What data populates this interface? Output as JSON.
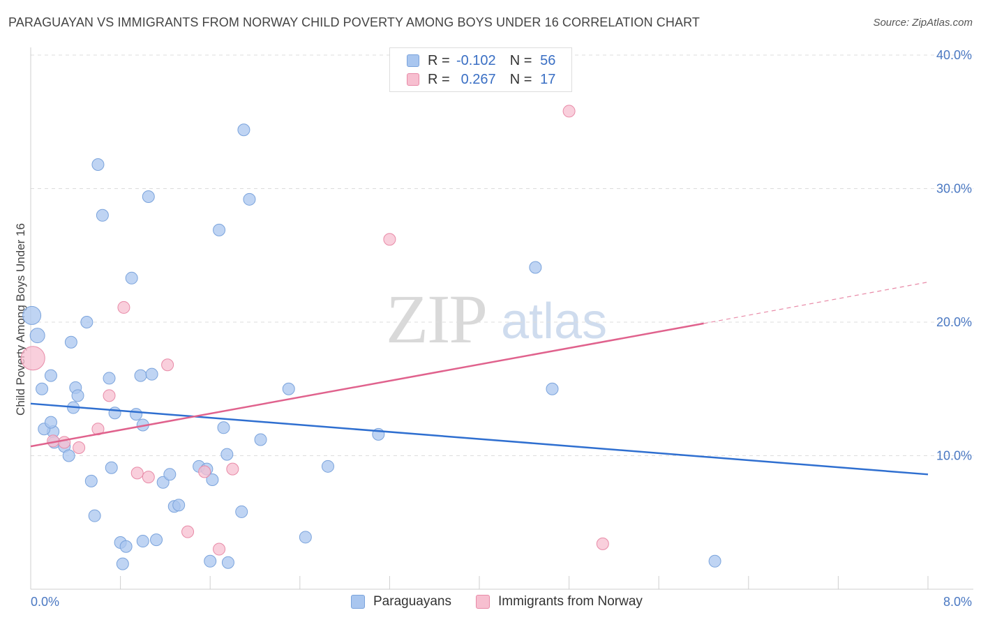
{
  "header": {
    "title": "PARAGUAYAN VS IMMIGRANTS FROM NORWAY CHILD POVERTY AMONG BOYS UNDER 16 CORRELATION CHART",
    "source": "Source: ZipAtlas.com"
  },
  "watermark": {
    "zip": "ZIP",
    "atlas": "atlas"
  },
  "legend": {
    "rows": [
      {
        "r_label": "R =",
        "r_value": "-0.102",
        "n_label": "N =",
        "n_value": "56",
        "color": "#a9c6ef",
        "border": "#7aa3dc"
      },
      {
        "r_label": "R =",
        "r_value": "0.267",
        "n_label": "N =",
        "n_value": "17",
        "color": "#f7bfd0",
        "border": "#e88aa7"
      }
    ]
  },
  "bottom_legend": [
    {
      "label": "Paraguayans",
      "color": "#a9c6ef",
      "border": "#7aa3dc"
    },
    {
      "label": "Immigrants from Norway",
      "color": "#f7bfd0",
      "border": "#e88aa7"
    }
  ],
  "chart_data": {
    "type": "scatter",
    "title": "PARAGUAYAN VS IMMIGRANTS FROM NORWAY CHILD POVERTY AMONG BOYS UNDER 16 CORRELATION CHART",
    "xlabel": "",
    "ylabel": "Child Poverty Among Boys Under 16",
    "xlim": [
      0,
      8
    ],
    "ylim": [
      0,
      40
    ],
    "x_tick_labels": [
      "0.0%",
      "8.0%"
    ],
    "y_ticks": [
      10,
      20,
      30,
      40
    ],
    "y_tick_labels": [
      "10.0%",
      "20.0%",
      "30.0%",
      "40.0%"
    ],
    "grid": true,
    "legend_position": "top-center",
    "series": [
      {
        "name": "Paraguayans",
        "color": "#a9c6ef",
        "stroke": "#7aa3dc",
        "points": [
          [
            0.01,
            20.5
          ],
          [
            0.06,
            19.0
          ],
          [
            0.2,
            11.8
          ],
          [
            0.21,
            11.0
          ],
          [
            0.1,
            15.0
          ],
          [
            0.12,
            12.0
          ],
          [
            0.18,
            12.5
          ],
          [
            0.3,
            10.7
          ],
          [
            0.34,
            10.0
          ],
          [
            0.38,
            13.6
          ],
          [
            0.4,
            15.1
          ],
          [
            0.42,
            14.5
          ],
          [
            0.36,
            18.5
          ],
          [
            0.5,
            20.0
          ],
          [
            0.6,
            31.8
          ],
          [
            0.64,
            28.0
          ],
          [
            0.7,
            15.8
          ],
          [
            0.75,
            13.2
          ],
          [
            0.72,
            9.1
          ],
          [
            0.54,
            8.1
          ],
          [
            0.57,
            5.5
          ],
          [
            0.8,
            3.5
          ],
          [
            0.85,
            3.2
          ],
          [
            0.82,
            1.9
          ],
          [
            0.9,
            23.3
          ],
          [
            0.94,
            13.1
          ],
          [
            0.98,
            16.0
          ],
          [
            1.0,
            12.3
          ],
          [
            1.05,
            29.4
          ],
          [
            1.08,
            16.1
          ],
          [
            1.12,
            3.7
          ],
          [
            1.18,
            8.0
          ],
          [
            1.24,
            8.6
          ],
          [
            1.28,
            6.2
          ],
          [
            1.32,
            6.3
          ],
          [
            1.5,
            9.2
          ],
          [
            1.57,
            9.0
          ],
          [
            1.6,
            2.1
          ],
          [
            1.62,
            8.2
          ],
          [
            1.72,
            12.1
          ],
          [
            1.68,
            26.9
          ],
          [
            1.75,
            10.1
          ],
          [
            1.76,
            2.0
          ],
          [
            1.88,
            5.8
          ],
          [
            1.9,
            34.4
          ],
          [
            1.95,
            29.2
          ],
          [
            2.05,
            11.2
          ],
          [
            2.3,
            15.0
          ],
          [
            2.45,
            3.9
          ],
          [
            2.65,
            9.2
          ],
          [
            3.1,
            11.6
          ],
          [
            4.5,
            24.1
          ],
          [
            4.65,
            15.0
          ],
          [
            6.1,
            2.1
          ],
          [
            0.18,
            16.0
          ],
          [
            1.0,
            3.6
          ]
        ],
        "trend": {
          "x1": 0,
          "y1": 13.9,
          "x2": 8,
          "y2": 8.6
        }
      },
      {
        "name": "Immigrants from Norway",
        "color": "#f7bfd0",
        "stroke": "#e88aa7",
        "points": [
          [
            0.02,
            17.3
          ],
          [
            0.2,
            11.1
          ],
          [
            0.3,
            11.0
          ],
          [
            0.43,
            10.6
          ],
          [
            0.6,
            12.0
          ],
          [
            0.7,
            14.5
          ],
          [
            0.83,
            21.1
          ],
          [
            0.95,
            8.7
          ],
          [
            1.05,
            8.4
          ],
          [
            1.22,
            16.8
          ],
          [
            1.4,
            4.3
          ],
          [
            1.55,
            8.8
          ],
          [
            1.68,
            3.0
          ],
          [
            1.8,
            9.0
          ],
          [
            3.2,
            26.2
          ],
          [
            4.8,
            35.8
          ],
          [
            5.1,
            3.4
          ]
        ],
        "trend": {
          "x1": 0,
          "y1": 10.7,
          "x2": 6.0,
          "y2": 19.9,
          "dash_to_x": 8,
          "dash_to_y": 23.0
        }
      }
    ]
  }
}
